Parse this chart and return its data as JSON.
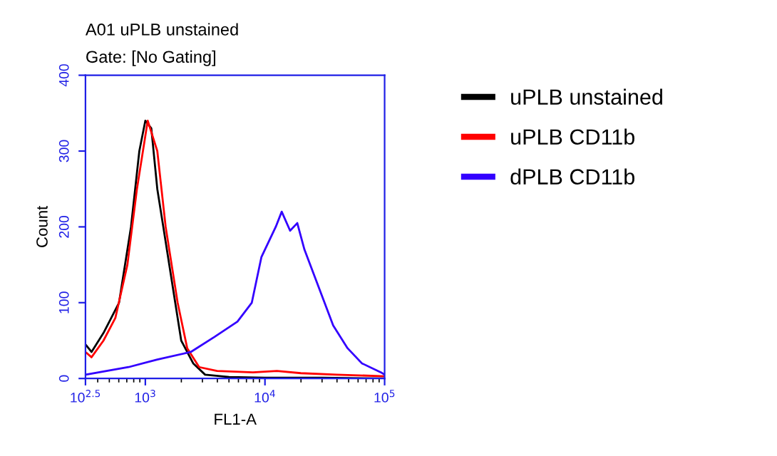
{
  "chart_data": {
    "type": "line",
    "title": "A01 uPLB unstained",
    "subtitle": "Gate: [No Gating]",
    "xlabel": "FL1-A",
    "ylabel": "Count",
    "log": "x",
    "xlim": [
      316,
      100000
    ],
    "xticks": [
      {
        "value": 316,
        "label": "10$^{2.5}$"
      },
      {
        "value": 1000,
        "label": "10$^{3}$"
      },
      {
        "value": 10000,
        "label": "10$^{4}$"
      },
      {
        "value": 100000,
        "label": "10$^{5}$"
      }
    ],
    "ylim": [
      0,
      400
    ],
    "yticks": [
      0,
      100,
      200,
      300,
      400
    ],
    "grid": false,
    "legend": "right",
    "marker": "none",
    "line_style": "solid",
    "series": [
      {
        "name": "uPLB unstained",
        "color": "#000000",
        "x": [
          316,
          355,
          447,
          603,
          759,
          891,
          1000,
          1122,
          1259,
          1413,
          1778,
          1995,
          2512,
          3162,
          5012,
          10000,
          30000,
          100000
        ],
        "values": [
          45,
          35,
          60,
          100,
          200,
          300,
          340,
          330,
          250,
          200,
          100,
          50,
          20,
          5,
          2,
          1,
          1,
          0
        ]
      },
      {
        "name": "uPLB CD11b",
        "color": "#ff0000",
        "x": [
          316,
          355,
          447,
          562,
          708,
          851,
          1000,
          1047,
          1259,
          1479,
          1862,
          2239,
          2818,
          3981,
          7943,
          12589,
          19953,
          39811,
          100000
        ],
        "values": [
          35,
          28,
          50,
          80,
          150,
          250,
          320,
          340,
          300,
          200,
          100,
          40,
          15,
          10,
          8,
          10,
          7,
          5,
          3
        ]
      },
      {
        "name": "dPLB CD11b",
        "color": "#3300ff",
        "x": [
          316,
          724,
          1259,
          2399,
          3802,
          5888,
          7762,
          9333,
          12303,
          13804,
          16218,
          18621,
          21380,
          28184,
          37154,
          48978,
          64565,
          93325,
          100000
        ],
        "values": [
          5,
          15,
          25,
          35,
          55,
          75,
          100,
          160,
          200,
          220,
          195,
          205,
          170,
          120,
          70,
          40,
          20,
          8,
          5
        ]
      }
    ]
  }
}
